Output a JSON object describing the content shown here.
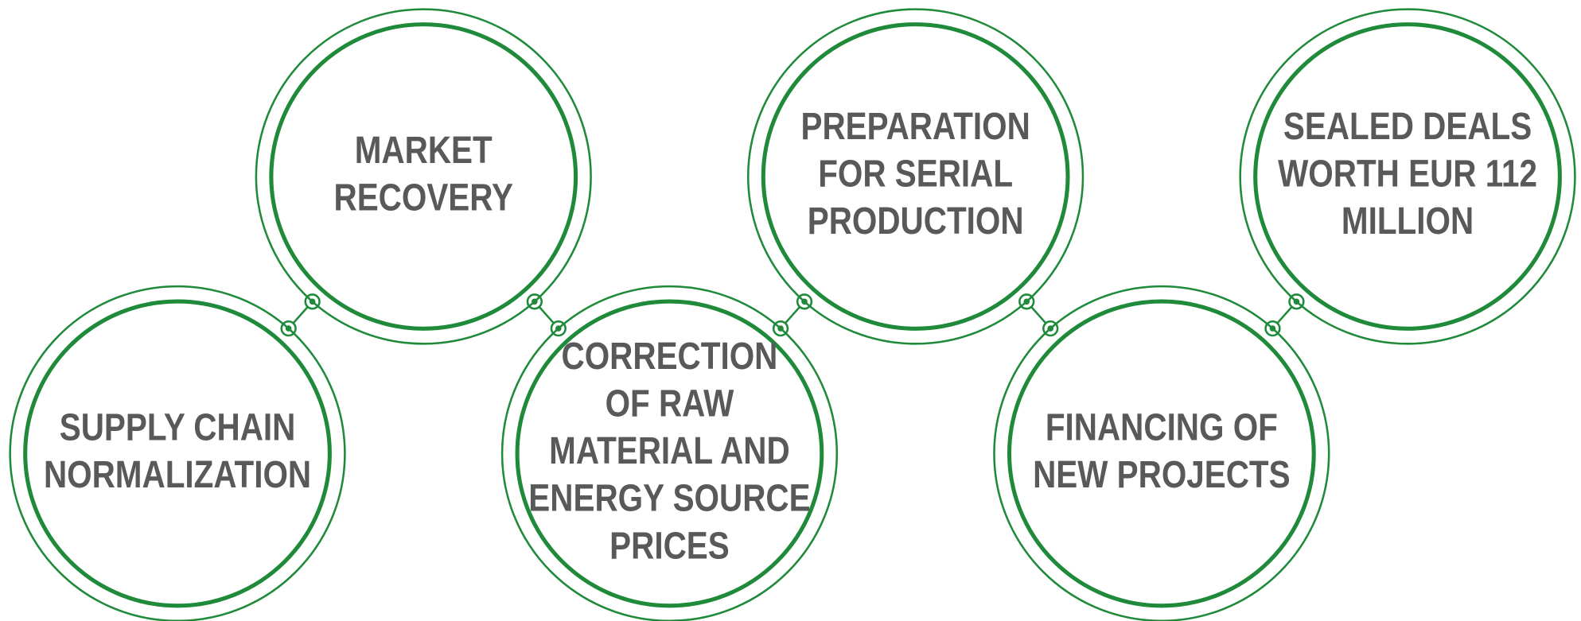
{
  "nodes": [
    {
      "lines": [
        "SUPPLY CHAIN",
        "NORMALIZATION"
      ]
    },
    {
      "lines": [
        "MARKET",
        "RECOVERY"
      ]
    },
    {
      "lines": [
        "CORRECTION",
        "OF RAW",
        "MATERIAL AND",
        "ENERGY SOURCE",
        "PRICES"
      ]
    },
    {
      "lines": [
        "PREPARATION",
        "FOR SERIAL",
        "PRODUCTION"
      ]
    },
    {
      "lines": [
        "FINANCING OF",
        "NEW PROJECTS"
      ]
    },
    {
      "lines": [
        "SEALED DEALS",
        "WORTH EUR 112",
        "MILLION"
      ]
    }
  ]
}
